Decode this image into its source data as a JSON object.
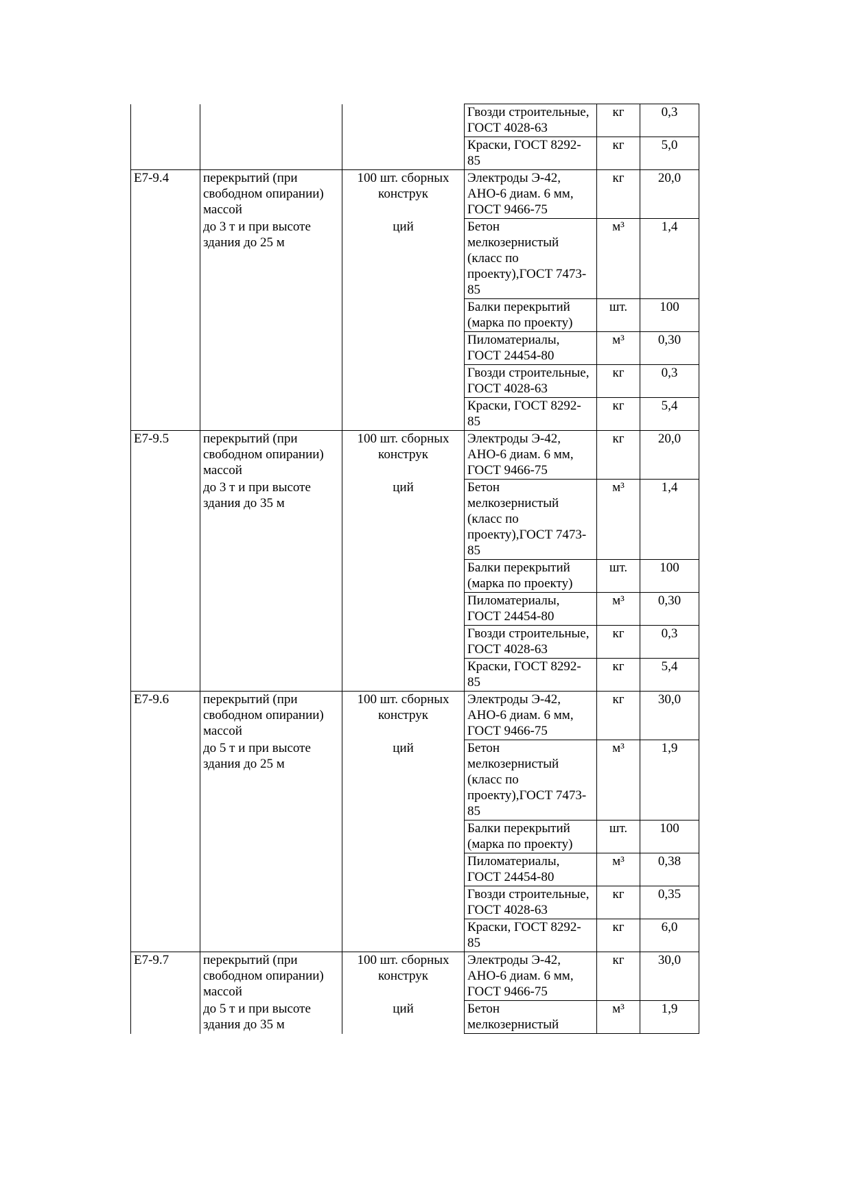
{
  "blocks": [
    {
      "code": "",
      "desc1": "",
      "desc2": "",
      "unit1": "",
      "unit2": "",
      "continued": true,
      "materials": [
        {
          "name": "Гвозди строительные, ГОСТ 4028-63",
          "unit": "кг",
          "qty": "0,3"
        },
        {
          "name": "Краски, ГОСТ 8292-85",
          "unit": "кг",
          "qty": "5,0"
        }
      ]
    },
    {
      "code": "Е7-9.4",
      "desc1": "перекрытий (при свободном опирании) массой",
      "desc2": "до 3 т и при высоте здания до 25 м",
      "unit1": "100 шт. сборных конструк",
      "unit2": "ций",
      "materials": [
        {
          "name": "Электроды Э-42, АНО-6 диам. 6 мм, ГОСТ 9466-75",
          "unit": "кг",
          "qty": "20,0"
        },
        {
          "name": "Бетон мелкозернистый (класс по проекту),ГОСТ 7473-85",
          "unit": "м³",
          "qty": "1,4"
        },
        {
          "name": "Балки перекрытий (марка по проекту)",
          "unit": "шт.",
          "qty": "100"
        },
        {
          "name": "Пиломатериалы, ГОСТ 24454-80",
          "unit": "м³",
          "qty": "0,30"
        },
        {
          "name": "Гвозди строительные, ГОСТ 4028-63",
          "unit": "кг",
          "qty": "0,3"
        },
        {
          "name": "Краски, ГОСТ 8292-85",
          "unit": "кг",
          "qty": "5,4"
        }
      ]
    },
    {
      "code": "Е7-9.5",
      "desc1": "перекрытий (при свободном опирании) массой",
      "desc2": "до 3 т и при высоте здания до 35 м",
      "unit1": "100 шт. сборных конструк",
      "unit2": "ций",
      "materials": [
        {
          "name": "Электроды Э-42, АНО-6 диам. 6 мм, ГОСТ 9466-75",
          "unit": "кг",
          "qty": "20,0"
        },
        {
          "name": "Бетон мелкозернистый (класс по проекту),ГОСТ 7473-85",
          "unit": "м³",
          "qty": "1,4"
        },
        {
          "name": "Балки перекрытий (марка по проекту)",
          "unit": "шт.",
          "qty": "100"
        },
        {
          "name": "Пиломатериалы, ГОСТ 24454-80",
          "unit": "м³",
          "qty": "0,30"
        },
        {
          "name": "Гвозди строительные, ГОСТ 4028-63",
          "unit": "кг",
          "qty": "0,3"
        },
        {
          "name": "Краски, ГОСТ 8292-85",
          "unit": "кг",
          "qty": "5,4"
        }
      ]
    },
    {
      "code": "Е7-9.6",
      "desc1": "перекрытий (при свободном опирании) массой",
      "desc2": "до 5 т и при высоте здания до 25 м",
      "unit1": "100 шт. сборных конструк",
      "unit2": "ций",
      "materials": [
        {
          "name": "Электроды Э-42, АНО-6 диам. 6 мм, ГОСТ 9466-75",
          "unit": "кг",
          "qty": "30,0"
        },
        {
          "name": "Бетон мелкозернистый (класс по проекту),ГОСТ 7473-85",
          "unit": "м³",
          "qty": "1,9"
        },
        {
          "name": "Балки перекрытий (марка по проекту)",
          "unit": "шт.",
          "qty": "100"
        },
        {
          "name": "Пиломатериалы, ГОСТ 24454-80",
          "unit": "м³",
          "qty": "0,38"
        },
        {
          "name": "Гвозди строительные, ГОСТ 4028-63",
          "unit": "кг",
          "qty": "0,35"
        },
        {
          "name": "Краски, ГОСТ 8292-85",
          "unit": "кг",
          "qty": "6,0"
        }
      ]
    },
    {
      "code": "Е7-9.7",
      "desc1": "перекрытий (при свободном опирании) массой",
      "desc2": "до 5 т и при высоте здания до 35 м",
      "unit1": "100 шт. сборных конструк",
      "unit2": "ций",
      "materials": [
        {
          "name": "Электроды Э-42, АНО-6 диам. 6 мм, ГОСТ 9466-75",
          "unit": "кг",
          "qty": "30,0"
        },
        {
          "name": "Бетон мелкозернистый",
          "unit": "м³",
          "qty": "1,9"
        }
      ]
    }
  ]
}
